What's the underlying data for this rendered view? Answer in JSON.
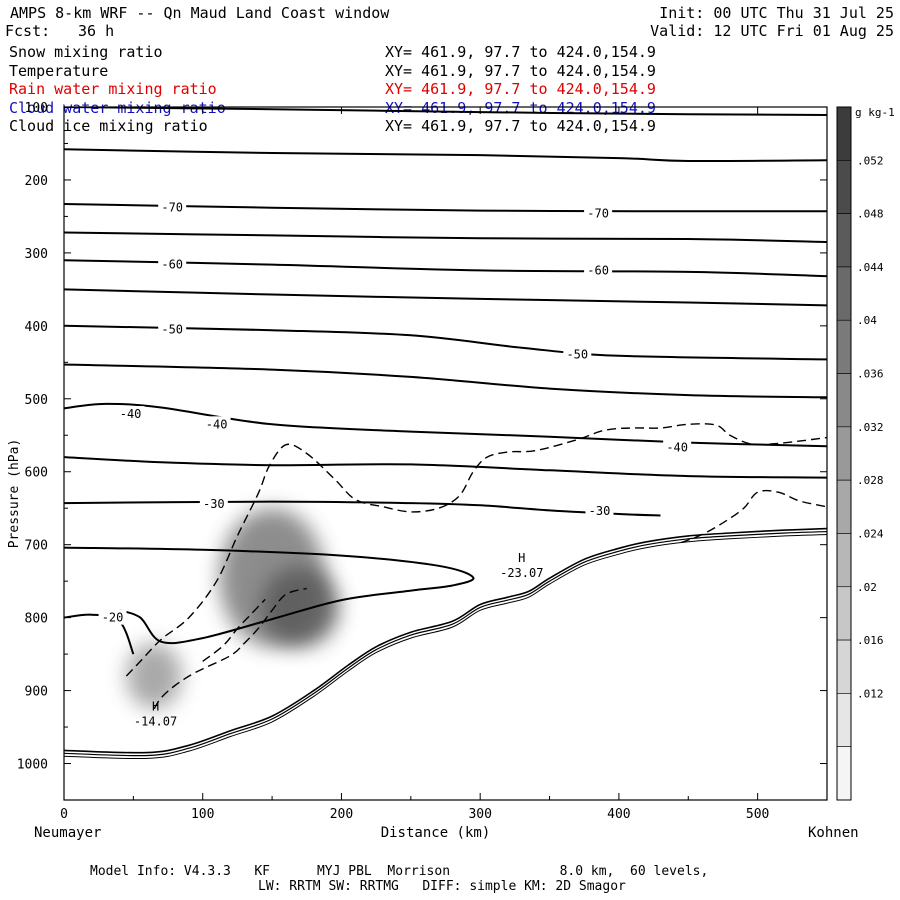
{
  "header": {
    "title": "AMPS 8-km WRF -- Qn Maud Land Coast window",
    "init": "Init: 00 UTC Thu 31 Jul 25",
    "fcst_label": "Fcst:",
    "fcst_value": "36 h",
    "valid": "Valid: 12 UTC Fri 01 Aug 25"
  },
  "fields": [
    {
      "name": "Snow mixing ratio",
      "xy": "XY= 461.9, 97.7 to 424.0,154.9",
      "color": "#000000"
    },
    {
      "name": "Temperature",
      "xy": "XY= 461.9, 97.7 to 424.0,154.9",
      "color": "#000000"
    },
    {
      "name": "Rain water mixing ratio",
      "xy": "XY= 461.9, 97.7 to 424.0,154.9",
      "color": "#e00000"
    },
    {
      "name": "Cloud water mixing ratio",
      "xy": "XY= 461.9, 97.7 to 424.0,154.9",
      "color": "#1010c0"
    },
    {
      "name": "Cloud ice mixing ratio",
      "xy": "XY= 461.9, 97.7 to 424.0,154.9",
      "color": "#000000"
    }
  ],
  "chart_data": {
    "type": "contour",
    "xlabel": "Distance (km)",
    "ylabel": "Pressure (hPa)",
    "xlim": [
      0,
      550
    ],
    "ylim": [
      1050,
      100
    ],
    "x_ticks": [
      0,
      100,
      200,
      300,
      400,
      500
    ],
    "y_ticks": [
      100,
      200,
      300,
      400,
      500,
      600,
      700,
      800,
      900,
      1000
    ],
    "x_start_label": "Neumayer",
    "x_end_label": "Kohnen",
    "colorbar": {
      "unit": "g kg-1",
      "tick_labels": [
        ".052",
        ".048",
        ".044",
        ".04",
        ".036",
        ".032",
        ".028",
        ".024",
        ".02",
        ".016",
        ".012"
      ],
      "levels": [
        0.056,
        0.052,
        0.048,
        0.044,
        0.04,
        0.036,
        0.032,
        0.028,
        0.024,
        0.02,
        0.016,
        0.012,
        0.008
      ]
    },
    "isotherm_labels": [
      {
        "text": "-70",
        "x": 78,
        "p": 238
      },
      {
        "text": "-70",
        "x": 385,
        "p": 246
      },
      {
        "text": "-60",
        "x": 78,
        "p": 316
      },
      {
        "text": "-60",
        "x": 385,
        "p": 324
      },
      {
        "text": "-50",
        "x": 78,
        "p": 405
      },
      {
        "text": "-50",
        "x": 370,
        "p": 439
      },
      {
        "text": "-40",
        "x": 48,
        "p": 521
      },
      {
        "text": "-40",
        "x": 110,
        "p": 535
      },
      {
        "text": "-40",
        "x": 442,
        "p": 567
      },
      {
        "text": "-30",
        "x": 108,
        "p": 644
      },
      {
        "text": "-30",
        "x": 386,
        "p": 654
      },
      {
        "text": "-20",
        "x": 35,
        "p": 800
      }
    ],
    "extrema": [
      {
        "symbol": "H",
        "value": "-14.07",
        "x": 66,
        "p": 944
      },
      {
        "symbol": "H",
        "value": "-23.07",
        "x": 330,
        "p": 740
      }
    ],
    "isotherms": [
      {
        "label": "-80",
        "points": [
          [
            0,
            100
          ],
          [
            150,
            103
          ],
          [
            300,
            107
          ],
          [
            450,
            110
          ],
          [
            550,
            111
          ]
        ]
      },
      {
        "label": "-75",
        "points": [
          [
            0,
            158
          ],
          [
            150,
            163
          ],
          [
            300,
            166
          ],
          [
            400,
            170
          ],
          [
            450,
            174
          ],
          [
            550,
            173
          ]
        ]
      },
      {
        "label": "-70",
        "points": [
          [
            0,
            233
          ],
          [
            150,
            238
          ],
          [
            300,
            242
          ],
          [
            450,
            243
          ],
          [
            550,
            243
          ]
        ]
      },
      {
        "label": "-65",
        "points": [
          [
            0,
            272
          ],
          [
            150,
            276
          ],
          [
            300,
            280
          ],
          [
            450,
            281
          ],
          [
            550,
            285
          ]
        ]
      },
      {
        "label": "-60",
        "points": [
          [
            0,
            310
          ],
          [
            150,
            316
          ],
          [
            300,
            324
          ],
          [
            450,
            326
          ],
          [
            550,
            332
          ]
        ]
      },
      {
        "label": "-55",
        "points": [
          [
            0,
            350
          ],
          [
            150,
            357
          ],
          [
            300,
            363
          ],
          [
            450,
            368
          ],
          [
            550,
            372
          ]
        ]
      },
      {
        "label": "-50",
        "points": [
          [
            0,
            400
          ],
          [
            150,
            406
          ],
          [
            250,
            413
          ],
          [
            330,
            430
          ],
          [
            400,
            441
          ],
          [
            550,
            446
          ]
        ]
      },
      {
        "label": "-45",
        "points": [
          [
            0,
            453
          ],
          [
            150,
            460
          ],
          [
            250,
            470
          ],
          [
            350,
            486
          ],
          [
            450,
            495
          ],
          [
            550,
            498
          ]
        ]
      },
      {
        "label": "-40",
        "points": [
          [
            0,
            513
          ],
          [
            30,
            507
          ],
          [
            70,
            512
          ],
          [
            150,
            535
          ],
          [
            250,
            545
          ],
          [
            350,
            552
          ],
          [
            450,
            560
          ],
          [
            550,
            565
          ]
        ]
      },
      {
        "label": "-35",
        "points": [
          [
            0,
            580
          ],
          [
            70,
            587
          ],
          [
            150,
            591
          ],
          [
            250,
            590
          ],
          [
            350,
            598
          ],
          [
            450,
            606
          ],
          [
            550,
            608
          ]
        ]
      },
      {
        "label": "-30",
        "points": [
          [
            0,
            643
          ],
          [
            150,
            641
          ],
          [
            250,
            643
          ],
          [
            300,
            646
          ],
          [
            350,
            653
          ],
          [
            400,
            658
          ],
          [
            430,
            660
          ]
        ]
      },
      {
        "label": "-25",
        "points": [
          [
            0,
            704
          ],
          [
            100,
            707
          ],
          [
            200,
            715
          ],
          [
            270,
            729
          ],
          [
            295,
            745
          ],
          [
            280,
            756
          ],
          [
            250,
            763
          ],
          [
            200,
            776
          ],
          [
            150,
            802
          ],
          [
            100,
            828
          ],
          [
            70,
            833
          ],
          [
            55,
            800
          ],
          [
            40,
            790
          ]
        ]
      },
      {
        "label": "-20",
        "points": [
          [
            0,
            800
          ],
          [
            20,
            796
          ],
          [
            40,
            805
          ],
          [
            50,
            850
          ]
        ]
      }
    ],
    "snow_dashed": [
      {
        "points": [
          [
            45,
            880
          ],
          [
            55,
            860
          ],
          [
            70,
            830
          ],
          [
            90,
            800
          ],
          [
            110,
            750
          ],
          [
            125,
            688
          ],
          [
            140,
            630
          ],
          [
            148,
            592
          ],
          [
            160,
            563
          ],
          [
            175,
            575
          ],
          [
            195,
            610
          ],
          [
            210,
            638
          ],
          [
            230,
            648
          ],
          [
            250,
            655
          ],
          [
            270,
            650
          ],
          [
            285,
            633
          ],
          [
            295,
            600
          ],
          [
            305,
            580
          ],
          [
            320,
            573
          ],
          [
            340,
            571
          ],
          [
            370,
            556
          ],
          [
            390,
            543
          ],
          [
            410,
            540
          ],
          [
            430,
            540
          ],
          [
            450,
            535
          ],
          [
            470,
            536
          ],
          [
            480,
            550
          ],
          [
            495,
            562
          ],
          [
            510,
            562
          ],
          [
            530,
            558
          ],
          [
            550,
            553
          ]
        ]
      },
      {
        "points": [
          [
            445,
            697
          ],
          [
            460,
            686
          ],
          [
            475,
            670
          ],
          [
            490,
            650
          ],
          [
            500,
            628
          ],
          [
            515,
            628
          ],
          [
            530,
            640
          ],
          [
            550,
            648
          ]
        ]
      },
      {
        "points": [
          [
            65,
            925
          ],
          [
            70,
            910
          ],
          [
            80,
            893
          ],
          [
            95,
            875
          ],
          [
            120,
            852
          ],
          [
            130,
            835
          ],
          [
            140,
            815
          ],
          [
            150,
            790
          ],
          [
            160,
            768
          ],
          [
            175,
            760
          ]
        ]
      },
      {
        "points": [
          [
            100,
            860
          ],
          [
            115,
            838
          ],
          [
            125,
            815
          ],
          [
            135,
            795
          ],
          [
            145,
            775
          ]
        ]
      }
    ],
    "terrain": {
      "points": [
        [
          0,
          982
        ],
        [
          60,
          985
        ],
        [
          90,
          975
        ],
        [
          120,
          955
        ],
        [
          150,
          935
        ],
        [
          180,
          900
        ],
        [
          205,
          865
        ],
        [
          225,
          840
        ],
        [
          250,
          820
        ],
        [
          280,
          805
        ],
        [
          300,
          782
        ],
        [
          320,
          772
        ],
        [
          335,
          764
        ],
        [
          350,
          746
        ],
        [
          375,
          720
        ],
        [
          400,
          705
        ],
        [
          420,
          696
        ],
        [
          450,
          688
        ],
        [
          480,
          684
        ],
        [
          520,
          680
        ],
        [
          550,
          678
        ]
      ]
    },
    "cloud_ice_shading": [
      {
        "x": 150,
        "p": 745,
        "rx": 38,
        "rp": 95,
        "level": 0.038
      },
      {
        "x": 170,
        "p": 785,
        "rx": 28,
        "rp": 55,
        "level": 0.048
      },
      {
        "x": 65,
        "p": 880,
        "rx": 20,
        "rp": 45,
        "level": 0.03
      }
    ]
  },
  "footer": {
    "line1": "Model Info: V4.3.3   KF      MYJ PBL  Morrison              8.0 km,  60 levels,",
    "line2": "LW: RRTM SW: RRTMG   DIFF: simple KM: 2D Smagor"
  }
}
